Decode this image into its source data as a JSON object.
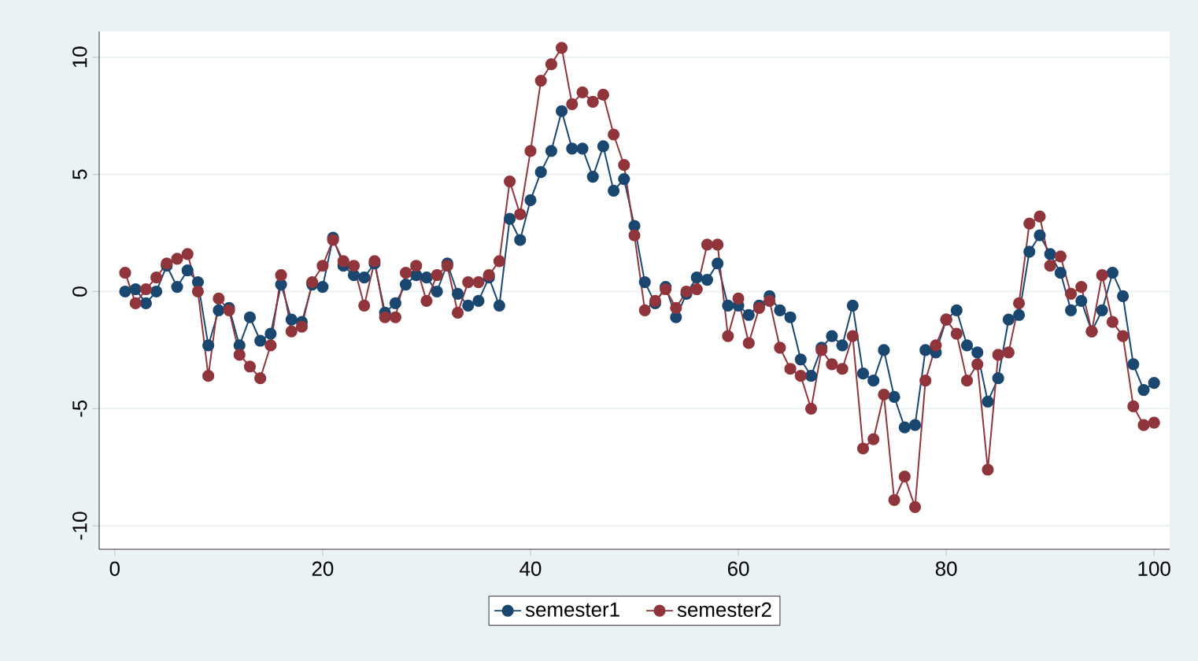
{
  "chart_data": {
    "type": "line",
    "x": [
      1,
      2,
      3,
      4,
      5,
      6,
      7,
      8,
      9,
      10,
      11,
      12,
      13,
      14,
      15,
      16,
      17,
      18,
      19,
      20,
      21,
      22,
      23,
      24,
      25,
      26,
      27,
      28,
      29,
      30,
      31,
      32,
      33,
      34,
      35,
      36,
      37,
      38,
      39,
      40,
      41,
      42,
      43,
      44,
      45,
      46,
      47,
      48,
      49,
      50,
      51,
      52,
      53,
      54,
      55,
      56,
      57,
      58,
      59,
      60,
      61,
      62,
      63,
      64,
      65,
      66,
      67,
      68,
      69,
      70,
      71,
      72,
      73,
      74,
      75,
      76,
      77,
      78,
      79,
      80,
      81,
      82,
      83,
      84,
      85,
      86,
      87,
      88,
      89,
      90,
      91,
      92,
      93,
      94,
      95,
      96,
      97,
      98,
      99,
      100
    ],
    "series": [
      {
        "name": "semester1",
        "color": "#1a476f",
        "values": [
          0.0,
          0.1,
          -0.5,
          0.0,
          1.1,
          0.2,
          0.9,
          0.4,
          -2.3,
          -0.8,
          -0.7,
          -2.3,
          -1.1,
          -2.1,
          -1.8,
          0.3,
          -1.2,
          -1.3,
          0.3,
          0.2,
          2.3,
          1.1,
          0.7,
          0.6,
          1.2,
          -0.9,
          -0.5,
          0.3,
          0.7,
          0.6,
          0.0,
          1.2,
          -0.1,
          -0.6,
          -0.4,
          0.6,
          -0.6,
          3.1,
          2.2,
          3.9,
          5.1,
          6.0,
          7.7,
          6.1,
          6.1,
          4.9,
          6.2,
          4.3,
          4.8,
          2.8,
          0.4,
          -0.5,
          0.2,
          -1.1,
          -0.1,
          0.6,
          0.5,
          1.2,
          -0.6,
          -0.6,
          -1.0,
          -0.6,
          -0.2,
          -0.8,
          -1.1,
          -2.9,
          -3.6,
          -2.4,
          -1.9,
          -2.3,
          -0.6,
          -3.5,
          -3.8,
          -2.5,
          -4.5,
          -5.8,
          -5.7,
          -2.5,
          -2.6,
          -1.2,
          -0.8,
          -2.3,
          -2.6,
          -4.7,
          -3.7,
          -1.2,
          -1.0,
          1.7,
          2.4,
          1.6,
          0.8,
          -0.8,
          -0.4,
          -1.7,
          -0.8,
          0.8,
          -0.2,
          -3.1,
          -4.2,
          -3.9
        ]
      },
      {
        "name": "semester2",
        "color": "#90353b",
        "values": [
          0.8,
          -0.5,
          0.1,
          0.6,
          1.2,
          1.4,
          1.6,
          0.0,
          -3.6,
          -0.3,
          -0.8,
          -2.7,
          -3.2,
          -3.7,
          -2.3,
          0.7,
          -1.7,
          -1.5,
          0.4,
          1.1,
          2.2,
          1.3,
          1.1,
          -0.6,
          1.3,
          -1.1,
          -1.1,
          0.8,
          1.1,
          -0.4,
          0.7,
          1.1,
          -0.9,
          0.4,
          0.4,
          0.7,
          1.3,
          4.7,
          3.3,
          6.0,
          9.0,
          9.7,
          10.4,
          8.0,
          8.5,
          8.1,
          8.4,
          6.7,
          5.4,
          2.4,
          -0.8,
          -0.4,
          0.1,
          -0.7,
          0.0,
          0.1,
          2.0,
          2.0,
          -1.9,
          -0.3,
          -2.2,
          -0.7,
          -0.4,
          -2.4,
          -3.3,
          -3.6,
          -5.0,
          -2.5,
          -3.1,
          -3.3,
          -1.9,
          -6.7,
          -6.3,
          -4.4,
          -8.9,
          -7.9,
          -9.2,
          -3.8,
          -2.3,
          -1.2,
          -1.8,
          -3.8,
          -3.1,
          -7.6,
          -2.7,
          -2.6,
          -0.5,
          2.9,
          3.2,
          1.1,
          1.5,
          -0.1,
          0.2,
          -1.7,
          0.7,
          -1.3,
          -1.9,
          -4.9,
          -5.7,
          -5.6
        ]
      }
    ],
    "xlim": [
      -1.5,
      101.5
    ],
    "ylim": [
      -11,
      11.1
    ],
    "xticks": [
      0,
      20,
      40,
      60,
      80,
      100
    ],
    "yticks": [
      -10,
      -5,
      0,
      5,
      10
    ],
    "grid": "y",
    "legend": "bottom",
    "marker": "circle",
    "line_style": "solid"
  }
}
